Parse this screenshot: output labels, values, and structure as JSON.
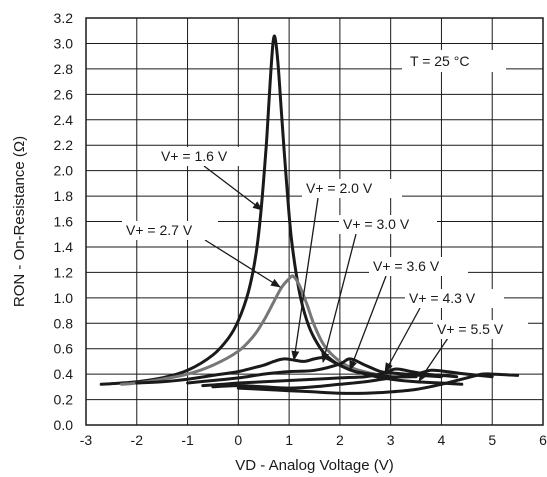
{
  "chart_data": {
    "type": "line",
    "xlabel": "VD - Analog Voltage (V)",
    "ylabel": "RON - On-Resistance (Ω)",
    "xlim": [
      -3,
      6
    ],
    "ylim": [
      0,
      3.2
    ],
    "xticks": [
      -3,
      -2,
      -1,
      0,
      1,
      2,
      3,
      4,
      5,
      6
    ],
    "yticks": [
      0.0,
      0.2,
      0.4,
      0.6,
      0.8,
      1.0,
      1.2,
      1.4,
      1.6,
      1.8,
      2.0,
      2.2,
      2.4,
      2.6,
      2.8,
      3.0,
      3.2
    ],
    "xtick_labels": [
      "-3",
      "-2",
      "-1",
      "0",
      "1",
      "2",
      "3",
      "4",
      "5",
      "6"
    ],
    "ytick_labels": [
      "0.0",
      "0.2",
      "0.4",
      "0.6",
      "0.8",
      "1.0",
      "1.2",
      "1.4",
      "1.6",
      "1.8",
      "2.0",
      "2.2",
      "2.4",
      "2.6",
      "2.8",
      "3.0",
      "3.2"
    ],
    "grid": true,
    "annotation": "T = 25 °C",
    "series": [
      {
        "name": "V+ = 1.6 V",
        "color": "#1a1a1a",
        "x": [
          -2.7,
          -2.3,
          -2.0,
          -1.5,
          -1.0,
          -0.5,
          -0.2,
          0.0,
          0.2,
          0.35,
          0.45,
          0.55,
          0.62,
          0.67,
          0.7,
          0.73,
          0.78,
          0.85,
          0.95,
          1.05,
          1.2,
          1.35,
          1.5,
          1.7,
          2.0,
          2.5,
          3.0,
          3.5,
          4.0,
          4.4
        ],
        "y": [
          0.32,
          0.33,
          0.34,
          0.37,
          0.43,
          0.55,
          0.68,
          0.82,
          1.05,
          1.35,
          1.7,
          2.2,
          2.65,
          2.95,
          3.05,
          3.03,
          2.85,
          2.45,
          1.9,
          1.45,
          1.05,
          0.82,
          0.68,
          0.56,
          0.47,
          0.4,
          0.36,
          0.34,
          0.33,
          0.32
        ]
      },
      {
        "name": "V+ = 2.0 V",
        "color": "#777777",
        "x": [
          -2.3,
          -2.0,
          -1.5,
          -1.0,
          -0.5,
          0.0,
          0.3,
          0.5,
          0.7,
          0.85,
          1.0,
          1.08,
          1.2,
          1.35,
          1.5,
          1.7,
          2.0,
          2.3,
          2.7,
          3.0
        ],
        "y": [
          0.32,
          0.33,
          0.36,
          0.4,
          0.47,
          0.58,
          0.7,
          0.82,
          0.97,
          1.08,
          1.15,
          1.17,
          1.1,
          0.95,
          0.78,
          0.62,
          0.5,
          0.44,
          0.4,
          0.38
        ]
      },
      {
        "name": "V+ = 2.7 V",
        "color": "#1a1a1a",
        "x": [
          -2.0,
          -1.5,
          -1.0,
          -0.5,
          0.0,
          0.3,
          0.5,
          0.7,
          0.9,
          1.1,
          1.3,
          1.5,
          1.7,
          1.9,
          2.1,
          2.3,
          2.6,
          3.0,
          3.5
        ],
        "y": [
          0.33,
          0.34,
          0.36,
          0.39,
          0.42,
          0.45,
          0.47,
          0.5,
          0.52,
          0.51,
          0.5,
          0.52,
          0.53,
          0.49,
          0.45,
          0.42,
          0.4,
          0.38,
          0.38
        ]
      },
      {
        "name": "V+ = 3.0 V",
        "color": "#1a1a1a",
        "x": [
          -1.0,
          -0.5,
          0.0,
          0.5,
          1.0,
          1.5,
          2.0,
          2.2,
          2.5,
          2.8,
          3.0,
          3.3,
          3.6,
          4.0
        ],
        "y": [
          0.33,
          0.35,
          0.37,
          0.4,
          0.42,
          0.43,
          0.48,
          0.52,
          0.47,
          0.42,
          0.41,
          0.4,
          0.39,
          0.38
        ]
      },
      {
        "name": "V+ = 3.6 V",
        "color": "#1a1a1a",
        "x": [
          -0.7,
          -0.3,
          0.0,
          0.5,
          1.0,
          1.5,
          2.0,
          2.5,
          2.8,
          3.1,
          3.4,
          3.7,
          4.0,
          4.3
        ],
        "y": [
          0.31,
          0.32,
          0.33,
          0.34,
          0.35,
          0.36,
          0.37,
          0.38,
          0.4,
          0.44,
          0.42,
          0.4,
          0.39,
          0.38
        ]
      },
      {
        "name": "V+ = 4.3 V",
        "color": "#1a1a1a",
        "x": [
          -0.5,
          0.0,
          0.5,
          1.0,
          1.5,
          2.0,
          2.5,
          3.0,
          3.5,
          3.8,
          4.1,
          4.5,
          5.0
        ],
        "y": [
          0.3,
          0.31,
          0.3,
          0.29,
          0.3,
          0.32,
          0.34,
          0.37,
          0.4,
          0.43,
          0.42,
          0.4,
          0.38
        ]
      },
      {
        "name": "V+ = 5.5 V",
        "color": "#1a1a1a",
        "x": [
          0.0,
          0.5,
          1.0,
          1.5,
          2.0,
          2.5,
          3.0,
          3.5,
          4.0,
          4.5,
          4.8,
          5.0,
          5.5
        ],
        "y": [
          0.29,
          0.28,
          0.27,
          0.26,
          0.25,
          0.25,
          0.26,
          0.28,
          0.32,
          0.37,
          0.4,
          0.4,
          0.39
        ]
      }
    ]
  }
}
